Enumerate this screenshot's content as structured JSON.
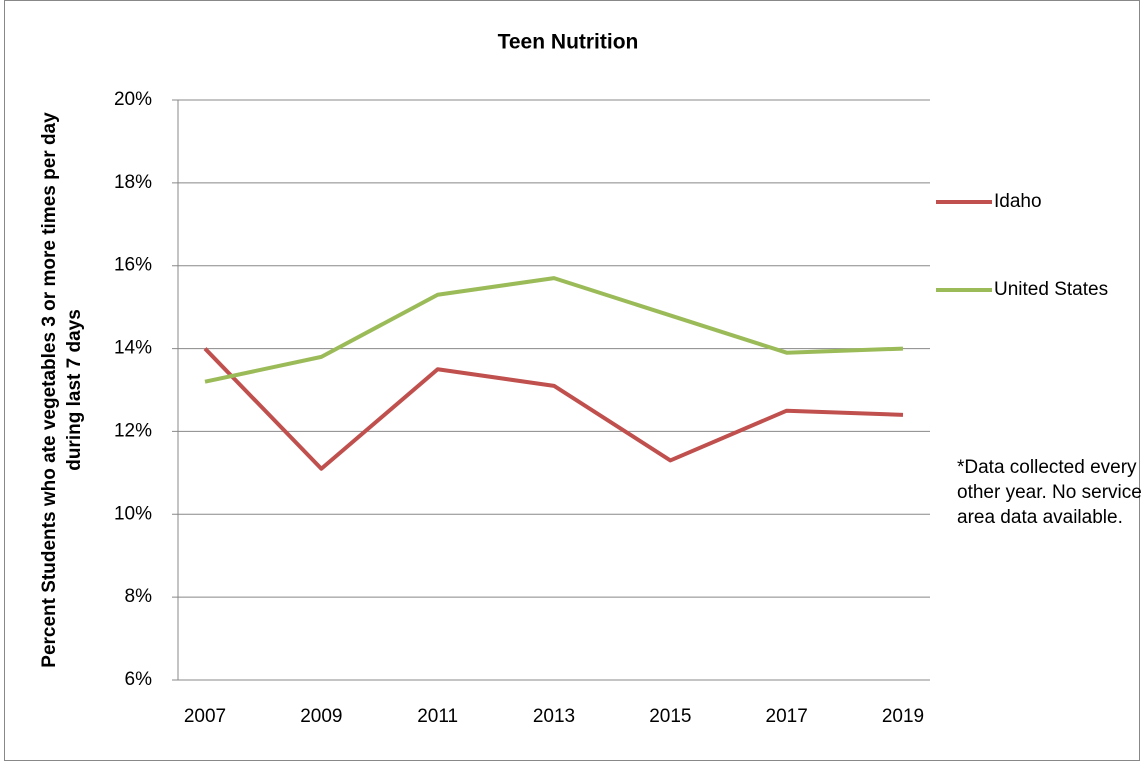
{
  "chart_data": {
    "type": "line",
    "title": "Teen Nutrition",
    "y_label": "Percent Students who ate vegetables 3 or more times per day during last 7 days",
    "annotation": "*Data collected every other year. No service area data available.",
    "categories": [
      "2007",
      "2009",
      "2011",
      "2013",
      "2015",
      "2017",
      "2019"
    ],
    "series": [
      {
        "name": "Idaho",
        "color": "#c0504d",
        "values": [
          14.0,
          11.1,
          13.5,
          13.1,
          11.3,
          12.5,
          12.4
        ]
      },
      {
        "name": "United States",
        "color": "#9bbb59",
        "values": [
          13.2,
          13.8,
          15.3,
          15.7,
          14.8,
          13.9,
          14.0
        ]
      }
    ],
    "ylim": [
      6,
      20
    ],
    "yticks": [
      {
        "value": 6,
        "label": "6%"
      },
      {
        "value": 8,
        "label": "8%"
      },
      {
        "value": 10,
        "label": "10%"
      },
      {
        "value": 12,
        "label": "12%"
      },
      {
        "value": 14,
        "label": "14%"
      },
      {
        "value": 16,
        "label": "16%"
      },
      {
        "value": 18,
        "label": "18%"
      },
      {
        "value": 20,
        "label": "20%"
      }
    ],
    "grid": true,
    "legend": "right"
  }
}
